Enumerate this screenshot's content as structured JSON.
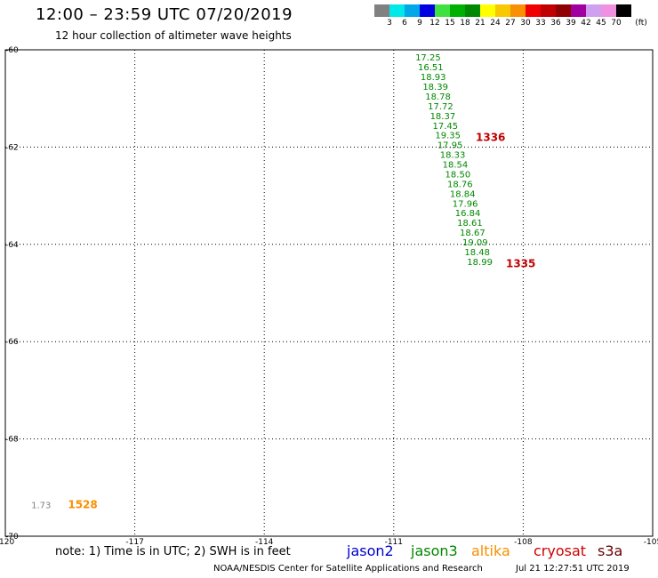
{
  "header": {
    "title": "12:00 – 23:59 UTC 07/20/2019",
    "subtitle": "12 hour collection of altimeter wave heights"
  },
  "legend": {
    "items": [
      {
        "label": "3",
        "color": "#808080"
      },
      {
        "label": "6",
        "color": "#00e8e8"
      },
      {
        "label": "9",
        "color": "#00a8e8"
      },
      {
        "label": "12",
        "color": "#0000e0"
      },
      {
        "label": "15",
        "color": "#40e040"
      },
      {
        "label": "18",
        "color": "#00b000"
      },
      {
        "label": "21",
        "color": "#008800"
      },
      {
        "label": "24",
        "color": "#ffff00"
      },
      {
        "label": "27",
        "color": "#f8c800"
      },
      {
        "label": "30",
        "color": "#f89000"
      },
      {
        "label": "33",
        "color": "#f00000"
      },
      {
        "label": "36",
        "color": "#c00000"
      },
      {
        "label": "39",
        "color": "#900000"
      },
      {
        "label": "42",
        "color": "#a000a0"
      },
      {
        "label": "45",
        "color": "#d0a0f0"
      },
      {
        "label": "70",
        "color": "#f090e0"
      },
      {
        "label": "",
        "color": "#000000"
      }
    ],
    "unit": "(ft)"
  },
  "chart_data": {
    "type": "scatter",
    "x_ticks": [
      "-120",
      "-117",
      "-114",
      "-111",
      "-108",
      "-105"
    ],
    "y_ticks": [
      "-60",
      "-62",
      "-64",
      "-66",
      "-68",
      "-70"
    ],
    "xlim": [
      -120,
      -105
    ],
    "ylim": [
      -70,
      -60
    ],
    "series": [
      {
        "name": "jason3",
        "color": "#008800",
        "points": [
          {
            "lon": -110.5,
            "lat": -60.15,
            "value": "17.25"
          },
          {
            "lon": -110.44,
            "lat": -60.35,
            "value": "16.51"
          },
          {
            "lon": -110.38,
            "lat": -60.55,
            "value": "18.93"
          },
          {
            "lon": -110.33,
            "lat": -60.75,
            "value": "18.39"
          },
          {
            "lon": -110.27,
            "lat": -60.95,
            "value": "18.78"
          },
          {
            "lon": -110.21,
            "lat": -61.15,
            "value": "17.72"
          },
          {
            "lon": -110.16,
            "lat": -61.35,
            "value": "18.37"
          },
          {
            "lon": -110.1,
            "lat": -61.55,
            "value": "17.45"
          },
          {
            "lon": -110.04,
            "lat": -61.75,
            "value": "19.35"
          },
          {
            "lon": -109.99,
            "lat": -61.95,
            "value": "17.95"
          },
          {
            "lon": -109.93,
            "lat": -62.15,
            "value": "18.33"
          },
          {
            "lon": -109.87,
            "lat": -62.35,
            "value": "18.54"
          },
          {
            "lon": -109.81,
            "lat": -62.55,
            "value": "18.50"
          },
          {
            "lon": -109.76,
            "lat": -62.75,
            "value": "18.76"
          },
          {
            "lon": -109.7,
            "lat": -62.95,
            "value": "18.84"
          },
          {
            "lon": -109.64,
            "lat": -63.15,
            "value": "17.96"
          },
          {
            "lon": -109.58,
            "lat": -63.35,
            "value": "16.84"
          },
          {
            "lon": -109.53,
            "lat": -63.55,
            "value": "18.61"
          },
          {
            "lon": -109.47,
            "lat": -63.75,
            "value": "18.67"
          },
          {
            "lon": -109.41,
            "lat": -63.95,
            "value": "19.09"
          },
          {
            "lon": -109.36,
            "lat": -64.15,
            "value": "18.48"
          },
          {
            "lon": -109.3,
            "lat": -64.35,
            "value": "18.99"
          }
        ]
      },
      {
        "name": "jason3-time",
        "color": "#c00000",
        "points": [
          {
            "lon": -109.1,
            "lat": -61.8,
            "value": "1336"
          },
          {
            "lon": -108.4,
            "lat": -64.4,
            "value": "1335"
          }
        ]
      },
      {
        "name": "altika",
        "color": "#808080",
        "points": [
          {
            "lon": -119.4,
            "lat": -69.35,
            "value": "1.73"
          }
        ]
      },
      {
        "name": "altika-time",
        "color": "#f89000",
        "points": [
          {
            "lon": -118.55,
            "lat": -69.35,
            "value": "1528"
          }
        ]
      }
    ]
  },
  "footer": {
    "note": "note:  1) Time is in UTC;  2) SWH is in feet",
    "satellites": [
      {
        "name": "jason2",
        "color": "#0000cc"
      },
      {
        "name": "jason3",
        "color": "#008800"
      },
      {
        "name": "altika",
        "color": "#f89000"
      },
      {
        "name": "cryosat",
        "color": "#cc0000"
      },
      {
        "name": "s3a",
        "color": "#660000"
      }
    ],
    "credit": "NOAA/NESDIS Center for Satellite Applications and Research",
    "timestamp": "Jul 21 12:27:51 UTC 2019"
  }
}
